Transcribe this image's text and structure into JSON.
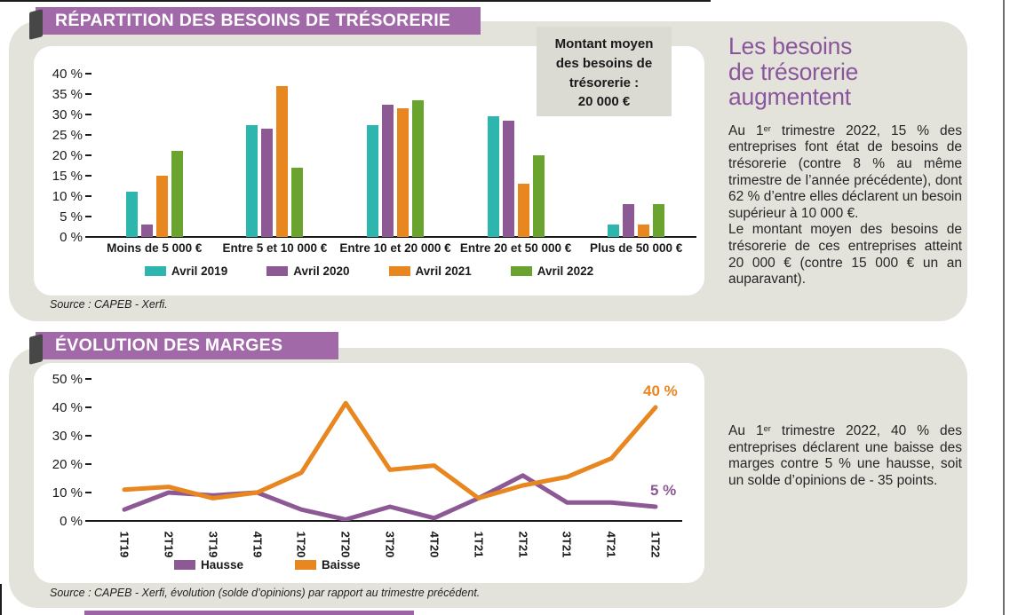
{
  "page": {
    "panel_bg": "#e3e3dc",
    "banner_purple": "#a269a8",
    "heading_purple": "#8a569b",
    "bottom_strip_color": "#9c63a5"
  },
  "section1": {
    "banner": "RÉPARTITION DES BESOINS DE TRÉSORERIE",
    "note_box": {
      "line1": "Montant moyen",
      "line2": "des besoins de",
      "line3": "trésorerie :",
      "line4": "20 000 €"
    },
    "source": "Source : CAPEB - Xerfi.",
    "aside": {
      "title_lines": [
        "Les besoins",
        "de trésorerie",
        "augmentent"
      ],
      "p1_a": "Au 1",
      "p1_sup": "er",
      "p1_b": " trimestre 2022, 15 % des entreprises font état de besoins de trésorerie (contre 8 % au même trimestre de l’année précédente), dont 62 % d’entre elles déclarent un besoin supérieur à 10 000 €.",
      "p2": "Le montant moyen des besoins de trésorerie de ces entreprises atteint 20 000 € (contre 15 000 € un an auparavant)."
    }
  },
  "section2": {
    "banner": "ÉVOLUTION DES MARGES",
    "source": "Source : CAPEB - Xerfi, évolution (solde d’opinions) par rapport au trimestre précédent.",
    "aside": {
      "p1_a": "Au 1",
      "p1_sup": "er",
      "p1_b": " trimestre 2022, 40 % des entreprises déclarent une baisse des marges contre 5 % une hausse, soit un solde d’opinions de - 35 points."
    }
  },
  "chart_data": [
    {
      "type": "bar",
      "title": "RÉPARTITION DES BESOINS DE TRÉSORERIE",
      "categories": [
        "Moins de 5 000 €",
        "Entre 5 et 10 000 €",
        "Entre 10 et 20 000 €",
        "Entre 20 et 50 000 €",
        "Plus de 50 000 €"
      ],
      "series": [
        {
          "name": "Avril 2019",
          "color": "#2cb6ad",
          "values": [
            11,
            27.5,
            27.5,
            29.5,
            3
          ]
        },
        {
          "name": "Avril 2020",
          "color": "#8c5995",
          "values": [
            3,
            26.5,
            32.5,
            28.5,
            8
          ]
        },
        {
          "name": "Avril 2021",
          "color": "#e8861f",
          "values": [
            15,
            37,
            31.5,
            13,
            3
          ]
        },
        {
          "name": "Avril 2022",
          "color": "#6ba32f",
          "values": [
            21,
            17,
            33.5,
            20,
            8
          ]
        }
      ],
      "ylim": [
        0,
        40
      ],
      "ytick_step": 5,
      "yticks": [
        "40 %",
        "35 %",
        "30 %",
        "25 %",
        "20 %",
        "15 %",
        "10 %",
        "5 %",
        "0 %"
      ],
      "ylabel": "",
      "xlabel": "",
      "grid": false,
      "legend_position": "bottom",
      "annotation": "Montant moyen des besoins de trésorerie : 20 000 €"
    },
    {
      "type": "line",
      "title": "ÉVOLUTION DES MARGES",
      "x": [
        "1T19",
        "2T19",
        "3T19",
        "4T19",
        "1T20",
        "2T20",
        "3T20",
        "4T20",
        "1T21",
        "2T21",
        "3T21",
        "4T21",
        "1T22"
      ],
      "series": [
        {
          "name": "Hausse",
          "color": "#8c5995",
          "values": [
            4,
            10,
            9,
            10,
            4,
            0.5,
            5,
            1,
            8,
            16,
            6.5,
            6.5,
            5
          ]
        },
        {
          "name": "Baisse",
          "color": "#e8861f",
          "values": [
            11,
            12,
            8,
            10,
            17,
            41.5,
            18,
            19.5,
            8,
            12.5,
            15.5,
            22,
            40
          ]
        }
      ],
      "ylim": [
        0,
        50
      ],
      "ytick_step": 10,
      "yticks": [
        "50 %",
        "40 %",
        "30 %",
        "20 %",
        "10 %",
        "0 %"
      ],
      "grid": false,
      "legend_position": "bottom",
      "end_labels": [
        {
          "series": "Baisse",
          "text": "40 %",
          "color": "#e8861f"
        },
        {
          "series": "Hausse",
          "text": "5 %",
          "color": "#8c5995"
        }
      ]
    }
  ]
}
